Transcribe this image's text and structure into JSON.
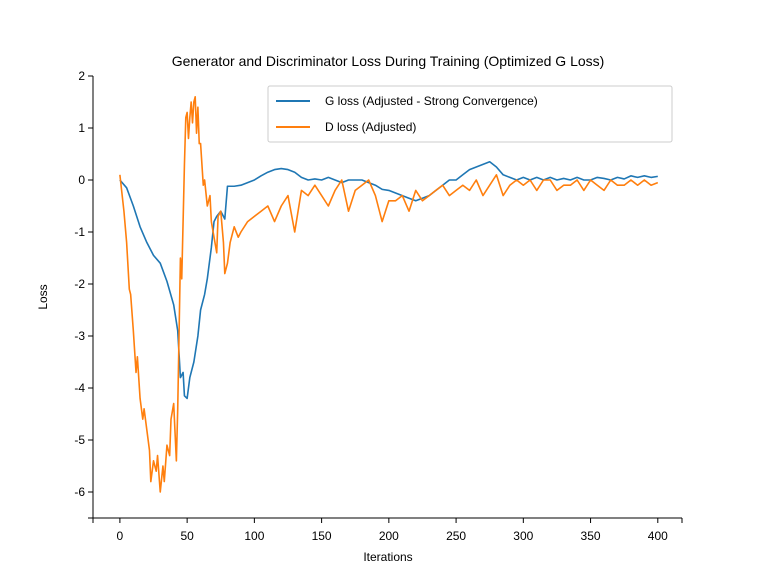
{
  "chart_data": {
    "type": "line",
    "title": "Generator and Discriminator Loss During Training (Optimized G Loss)",
    "xlabel": "Iterations",
    "ylabel": "Loss",
    "xlim": [
      -20,
      418
    ],
    "ylim": [
      -6.5,
      2.0
    ],
    "xticks": [
      0,
      50,
      100,
      150,
      200,
      250,
      300,
      350,
      400
    ],
    "yticks": [
      2,
      1,
      0,
      -1,
      -2,
      -3,
      -4,
      -5,
      -6
    ],
    "xtick_labels": [
      "0",
      "50",
      "100",
      "150",
      "200",
      "250",
      "300",
      "350",
      "400"
    ],
    "ytick_labels": [
      "2",
      "1",
      "0",
      "-1",
      "-2",
      "-3",
      "-4",
      "-5",
      "-6"
    ],
    "grid": false,
    "legend_position": "top-right",
    "series": [
      {
        "name": "G loss (Adjusted - Strong Convergence)",
        "color": "#1f77b4",
        "x": [
          0,
          5,
          10,
          15,
          20,
          25,
          30,
          35,
          40,
          43,
          45,
          47,
          48,
          50,
          52,
          55,
          58,
          60,
          63,
          65,
          68,
          70,
          72,
          75,
          78,
          80,
          85,
          90,
          95,
          100,
          105,
          110,
          115,
          120,
          125,
          130,
          135,
          140,
          145,
          150,
          155,
          160,
          165,
          170,
          175,
          180,
          185,
          190,
          195,
          200,
          205,
          210,
          215,
          220,
          225,
          230,
          235,
          240,
          245,
          250,
          255,
          260,
          265,
          270,
          275,
          280,
          285,
          290,
          295,
          300,
          305,
          310,
          315,
          320,
          325,
          330,
          335,
          340,
          345,
          350,
          355,
          360,
          365,
          370,
          375,
          380,
          385,
          390,
          395,
          400
        ],
        "y": [
          0.0,
          -0.15,
          -0.5,
          -0.9,
          -1.2,
          -1.45,
          -1.6,
          -1.95,
          -2.4,
          -2.9,
          -3.8,
          -3.7,
          -4.15,
          -4.2,
          -3.8,
          -3.5,
          -3.0,
          -2.5,
          -2.2,
          -1.9,
          -1.3,
          -0.8,
          -0.7,
          -0.6,
          -0.75,
          -0.12,
          -0.12,
          -0.1,
          -0.05,
          0.0,
          0.08,
          0.15,
          0.2,
          0.22,
          0.2,
          0.15,
          0.05,
          0.0,
          0.02,
          0.0,
          0.05,
          0.0,
          -0.05,
          0.0,
          0.0,
          0.0,
          -0.05,
          -0.1,
          -0.18,
          -0.2,
          -0.25,
          -0.3,
          -0.35,
          -0.4,
          -0.35,
          -0.3,
          -0.2,
          -0.1,
          0.0,
          0.0,
          0.1,
          0.2,
          0.25,
          0.3,
          0.35,
          0.25,
          0.1,
          0.05,
          0.0,
          0.05,
          0.0,
          0.05,
          0.0,
          0.05,
          0.0,
          0.03,
          0.0,
          0.05,
          0.0,
          0.0,
          0.05,
          0.03,
          0.0,
          0.05,
          0.02,
          0.08,
          0.05,
          0.08,
          0.05,
          0.07
        ]
      },
      {
        "name": "D loss (Adjusted)",
        "color": "#ff7f0e",
        "x": [
          0,
          3,
          5,
          7,
          8,
          10,
          12,
          13,
          15,
          17,
          18,
          20,
          22,
          23,
          25,
          27,
          28,
          30,
          32,
          33,
          35,
          37,
          38,
          40,
          42,
          43,
          45,
          46,
          48,
          49,
          50,
          51,
          52,
          53,
          54,
          55,
          56,
          57,
          58,
          59,
          60,
          62,
          63,
          65,
          67,
          68,
          70,
          72,
          73,
          75,
          77,
          78,
          80,
          82,
          85,
          88,
          90,
          95,
          100,
          105,
          110,
          115,
          120,
          125,
          130,
          135,
          140,
          145,
          150,
          155,
          160,
          165,
          170,
          175,
          180,
          185,
          190,
          195,
          200,
          205,
          210,
          215,
          220,
          225,
          230,
          235,
          240,
          245,
          250,
          255,
          260,
          265,
          270,
          275,
          280,
          285,
          290,
          295,
          300,
          305,
          310,
          315,
          320,
          325,
          330,
          335,
          340,
          345,
          350,
          355,
          360,
          365,
          370,
          375,
          380,
          385,
          390,
          395,
          400
        ],
        "y": [
          0.1,
          -0.6,
          -1.2,
          -2.1,
          -2.2,
          -2.9,
          -3.7,
          -3.4,
          -4.2,
          -4.6,
          -4.4,
          -4.8,
          -5.2,
          -5.8,
          -5.4,
          -5.6,
          -5.3,
          -6.0,
          -5.5,
          -5.8,
          -5.1,
          -5.3,
          -4.6,
          -4.3,
          -5.4,
          -4.4,
          -1.5,
          -1.9,
          0.3,
          1.2,
          1.3,
          0.8,
          1.2,
          1.5,
          1.1,
          1.5,
          1.6,
          0.9,
          1.4,
          0.7,
          0.7,
          -0.1,
          0.0,
          -0.5,
          -0.3,
          -0.8,
          -1.1,
          -1.4,
          -0.7,
          -0.6,
          -1.2,
          -1.8,
          -1.6,
          -1.2,
          -0.9,
          -1.1,
          -1.0,
          -0.8,
          -0.7,
          -0.6,
          -0.5,
          -0.8,
          -0.5,
          -0.3,
          -1.0,
          -0.2,
          -0.3,
          -0.1,
          -0.3,
          -0.5,
          -0.2,
          0.0,
          -0.6,
          -0.2,
          -0.1,
          0.0,
          -0.3,
          -0.8,
          -0.4,
          -0.4,
          -0.3,
          -0.6,
          -0.2,
          -0.4,
          -0.3,
          -0.2,
          -0.1,
          -0.3,
          -0.2,
          -0.1,
          -0.2,
          0.0,
          -0.3,
          -0.1,
          0.1,
          -0.3,
          -0.1,
          0.0,
          -0.1,
          0.0,
          -0.2,
          0.0,
          0.0,
          -0.2,
          -0.1,
          -0.1,
          0.0,
          -0.2,
          0.0,
          -0.1,
          -0.2,
          0.0,
          -0.1,
          -0.1,
          0.0,
          -0.1,
          0.0,
          -0.1,
          -0.05
        ]
      }
    ]
  }
}
